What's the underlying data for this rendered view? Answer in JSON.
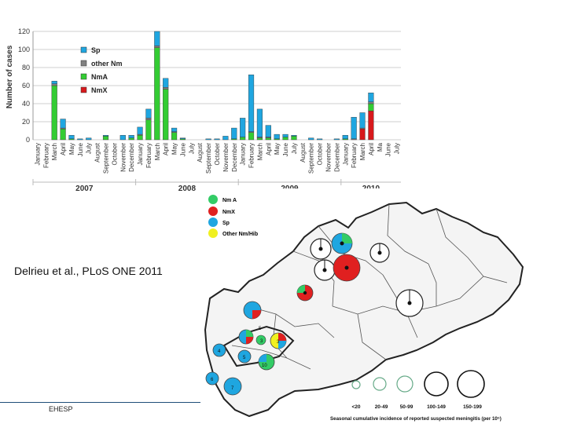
{
  "chart_data": {
    "type": "bar",
    "stacked": true,
    "ylabel": "Number of cases",
    "xlabel": "",
    "ylim": [
      0,
      120
    ],
    "yticks": [
      0,
      20,
      40,
      60,
      80,
      100,
      120
    ],
    "grid": true,
    "legend_position": "top-left",
    "categories": [
      "January",
      "February",
      "March",
      "April",
      "May",
      "June",
      "July",
      "August",
      "September",
      "October",
      "November",
      "December",
      "January",
      "February",
      "March",
      "April",
      "May",
      "June",
      "July",
      "August",
      "September",
      "October",
      "November",
      "December",
      "January",
      "February",
      "March",
      "April",
      "May",
      "June",
      "July",
      "August",
      "September",
      "October",
      "November",
      "December",
      "January",
      "February",
      "March",
      "April",
      "Ma",
      "June",
      "July"
    ],
    "year_labels": [
      {
        "label": "2007",
        "start": 0,
        "end": 11
      },
      {
        "label": "2008",
        "start": 12,
        "end": 23
      },
      {
        "label": "2009",
        "start": 24,
        "end": 35
      },
      {
        "label": "2010",
        "start": 36,
        "end": 42
      }
    ],
    "series": [
      {
        "name": "NmX",
        "color": "#d7191c",
        "values": [
          0,
          0,
          0,
          0,
          0,
          0,
          0,
          0,
          0,
          0,
          0,
          0,
          0,
          0,
          0,
          0,
          0,
          0,
          0,
          0,
          0,
          0,
          0,
          0,
          0,
          0,
          0,
          0,
          0,
          0,
          0,
          0,
          0,
          0,
          0,
          0,
          0,
          0,
          12,
          32,
          0,
          0,
          0
        ]
      },
      {
        "name": "NmA",
        "color": "#33cc33",
        "values": [
          0,
          0,
          60,
          12,
          1,
          0,
          0,
          0,
          4,
          0,
          0,
          2,
          5,
          22,
          102,
          56,
          8,
          1,
          0,
          0,
          0,
          0,
          0,
          1,
          3,
          8,
          2,
          2,
          1,
          3,
          4,
          0,
          0,
          0,
          0,
          0,
          1,
          0,
          0,
          8,
          0,
          0,
          0
        ]
      },
      {
        "name": "other Nm",
        "color": "#808080",
        "values": [
          0,
          0,
          2,
          1,
          0,
          0,
          0,
          0,
          0,
          0,
          0,
          0,
          1,
          2,
          2,
          2,
          1,
          0,
          0,
          0,
          0,
          0,
          0,
          0,
          0,
          1,
          1,
          1,
          0,
          0,
          0,
          0,
          0,
          0,
          0,
          0,
          0,
          1,
          1,
          2,
          0,
          0,
          0
        ]
      },
      {
        "name": "Sp",
        "color": "#1fa6e0",
        "values": [
          0,
          0,
          3,
          10,
          4,
          1,
          2,
          0,
          1,
          0,
          5,
          3,
          8,
          10,
          16,
          10,
          4,
          1,
          0,
          0,
          1,
          1,
          4,
          12,
          21,
          63,
          31,
          13,
          5,
          3,
          1,
          0,
          2,
          1,
          0,
          1,
          4,
          24,
          17,
          10,
          0,
          0,
          0
        ]
      }
    ]
  },
  "map": {
    "legend": [
      {
        "label": "Nm A",
        "color": "#33cc66"
      },
      {
        "label": "NmX",
        "color": "#e02020"
      },
      {
        "label": "Sp",
        "color": "#1fa6e0"
      },
      {
        "label": "Other Nm/Hib",
        "color": "#f0f020"
      }
    ],
    "size_legend": [
      "<20",
      "20-49",
      "50-99",
      "100-149",
      "150-199"
    ],
    "size_caption": "Seasonal cumulative incidence of reported suspected meningitis (per 10⁵)",
    "pie_labels": [
      "5",
      "3",
      "3",
      "4",
      "5",
      "10",
      "6",
      "7"
    ]
  },
  "citation": "Delrieu et al., PLoS ONE 2011",
  "footer": "EHESP"
}
